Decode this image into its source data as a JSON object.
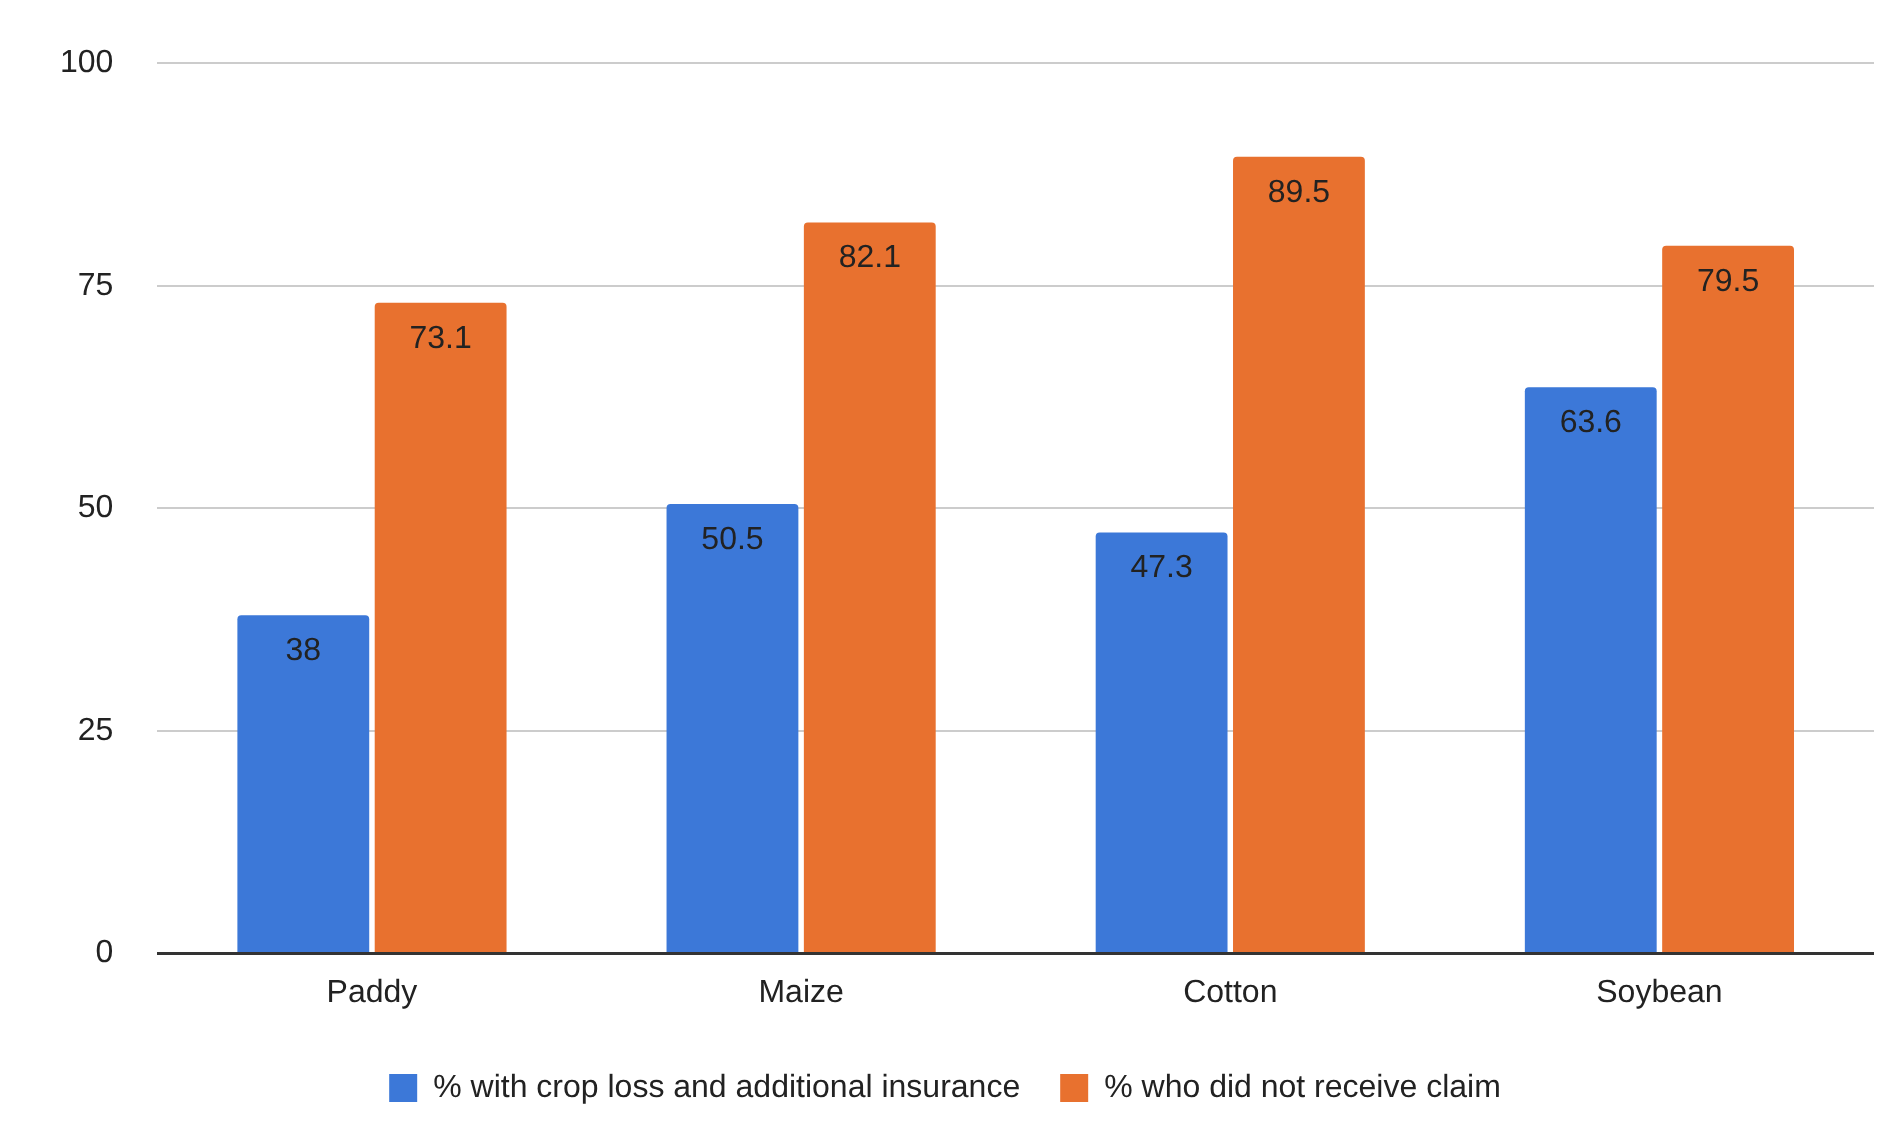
{
  "chart_data": {
    "type": "bar",
    "categories": [
      "Paddy",
      "Maize",
      "Cotton",
      "Soybean"
    ],
    "series": [
      {
        "name": "% with crop loss and additional insurance",
        "color": "#3c78d8",
        "values": [
          38,
          50.5,
          47.3,
          63.6
        ]
      },
      {
        "name": "% who did not receive claim",
        "color": "#e8712f",
        "values": [
          73.1,
          82.1,
          89.5,
          79.5
        ]
      }
    ],
    "ylim": [
      0,
      100
    ],
    "yticks": [
      0,
      25,
      50,
      75,
      100
    ],
    "grid": "y",
    "legend": "bottom",
    "data_labels": true
  }
}
